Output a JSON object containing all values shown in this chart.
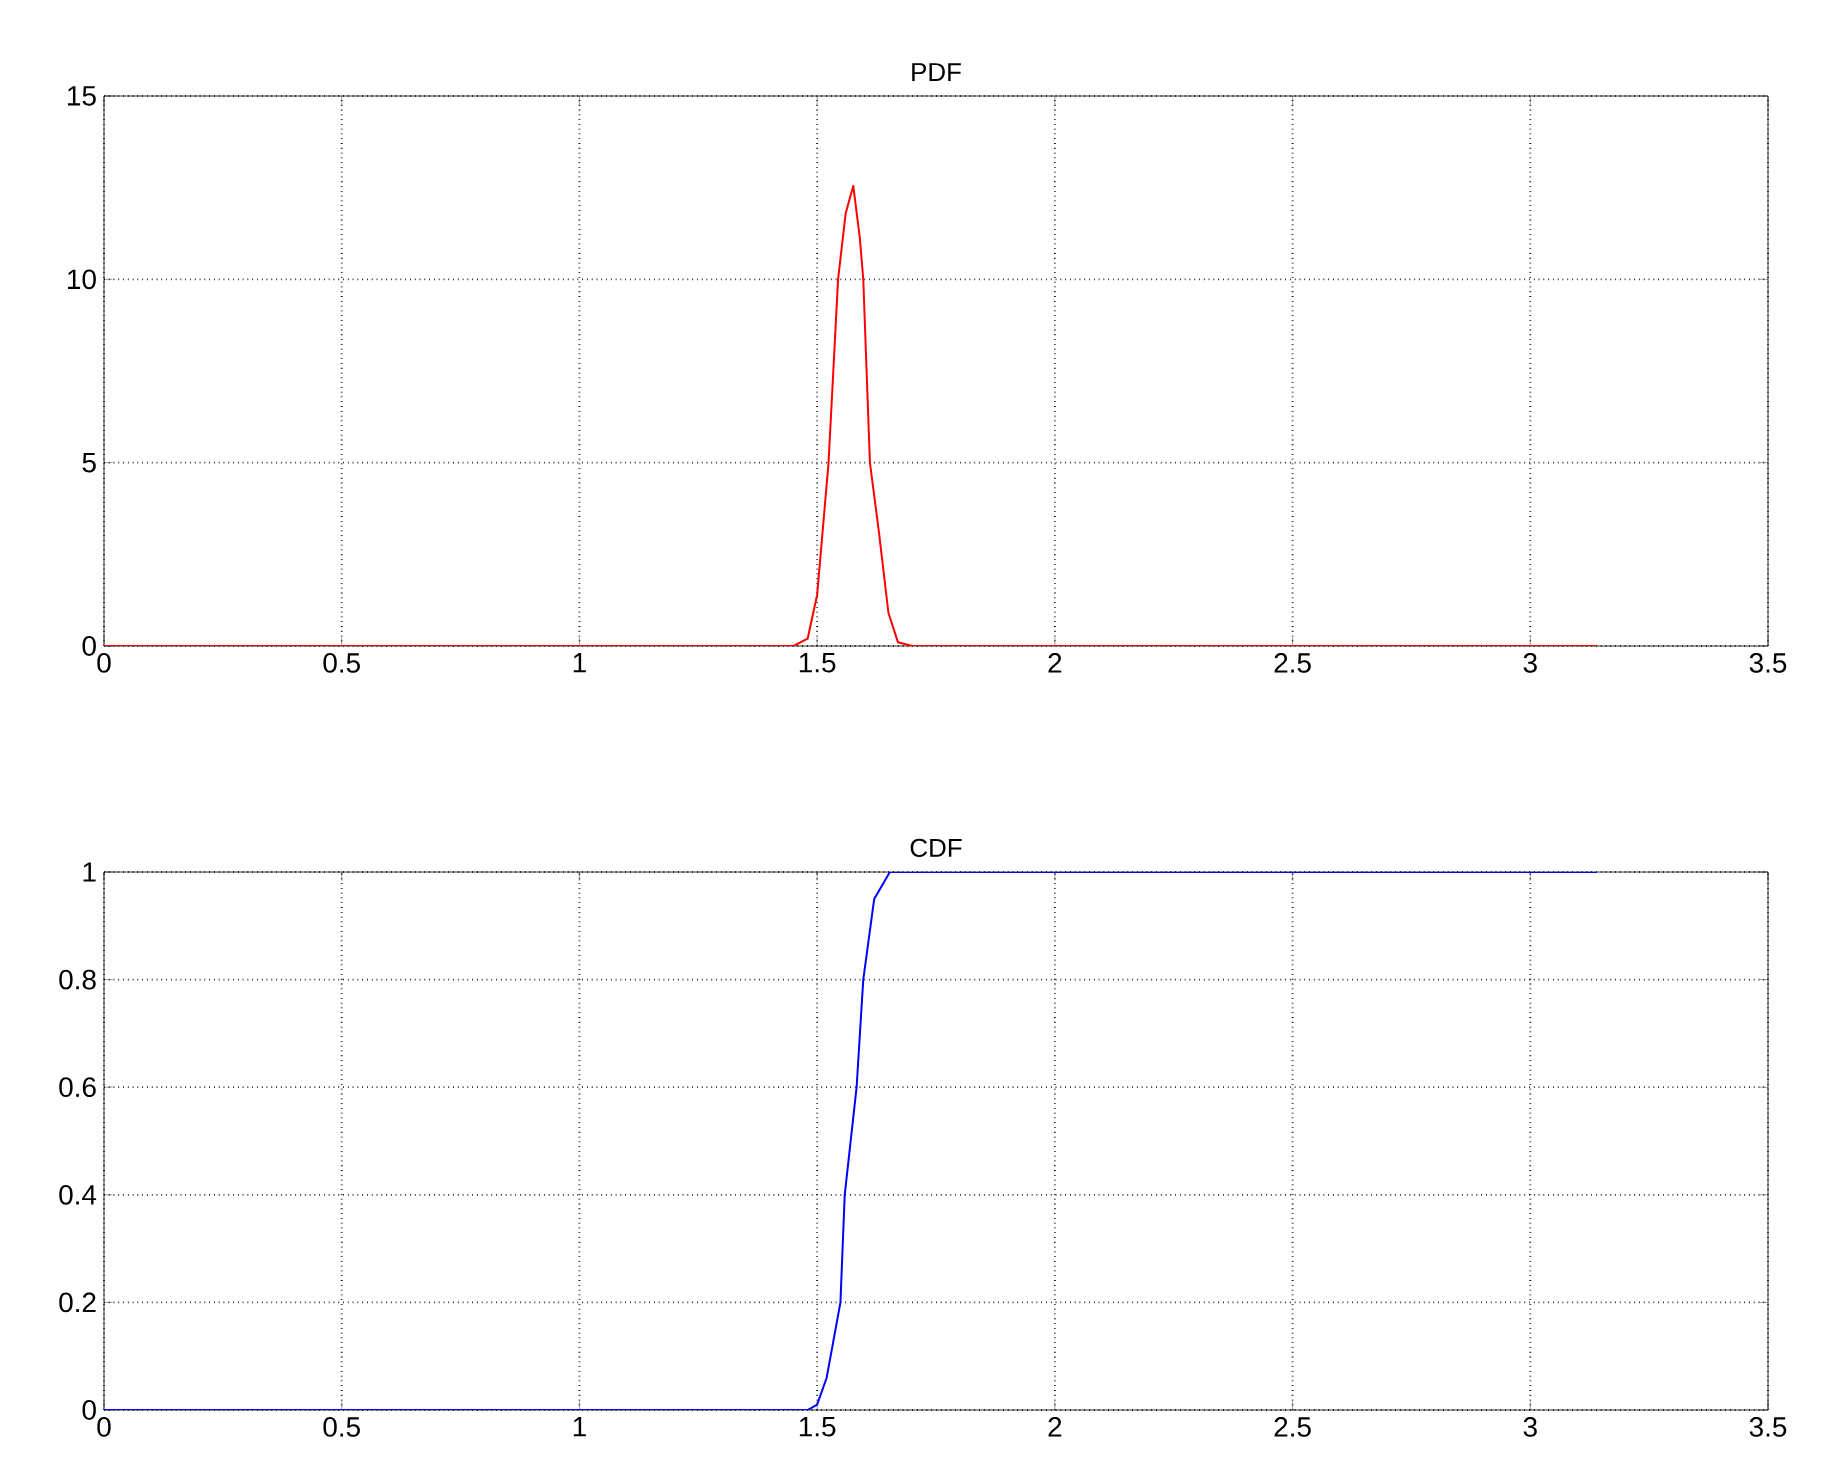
{
  "chart_data": [
    {
      "type": "line",
      "title": "PDF",
      "x": [
        0,
        1.45,
        1.48,
        1.5,
        1.524,
        1.544,
        1.56,
        1.576,
        1.59,
        1.597,
        1.611,
        1.63,
        1.65,
        1.67,
        1.7,
        3.14
      ],
      "series": [
        {
          "color": "#ff0000",
          "values": [
            0,
            0,
            0.2,
            1.4,
            5,
            10,
            11.8,
            12.55,
            11.1,
            10,
            5,
            3.1,
            0.9,
            0.1,
            0,
            0
          ]
        }
      ],
      "xlim": [
        0,
        3.5
      ],
      "ylim": [
        0,
        15
      ],
      "xticks": [
        0,
        0.5,
        1,
        1.5,
        2,
        2.5,
        3,
        3.5
      ],
      "yticks": [
        0,
        5,
        10,
        15
      ],
      "grid": true
    },
    {
      "type": "line",
      "title": "CDF",
      "x": [
        0,
        1.48,
        1.5,
        1.52,
        1.549,
        1.558,
        1.583,
        1.597,
        1.62,
        1.653,
        3.14
      ],
      "series": [
        {
          "color": "#0000ff",
          "values": [
            0,
            0,
            0.01,
            0.06,
            0.2,
            0.4,
            0.6,
            0.8,
            0.95,
            1,
            1
          ]
        }
      ],
      "xlim": [
        0,
        3.5
      ],
      "ylim": [
        0,
        1
      ],
      "xticks": [
        0,
        0.5,
        1,
        1.5,
        2,
        2.5,
        3,
        3.5
      ],
      "yticks": [
        0,
        0.2,
        0.4,
        0.6,
        0.8,
        1
      ],
      "grid": true
    }
  ]
}
